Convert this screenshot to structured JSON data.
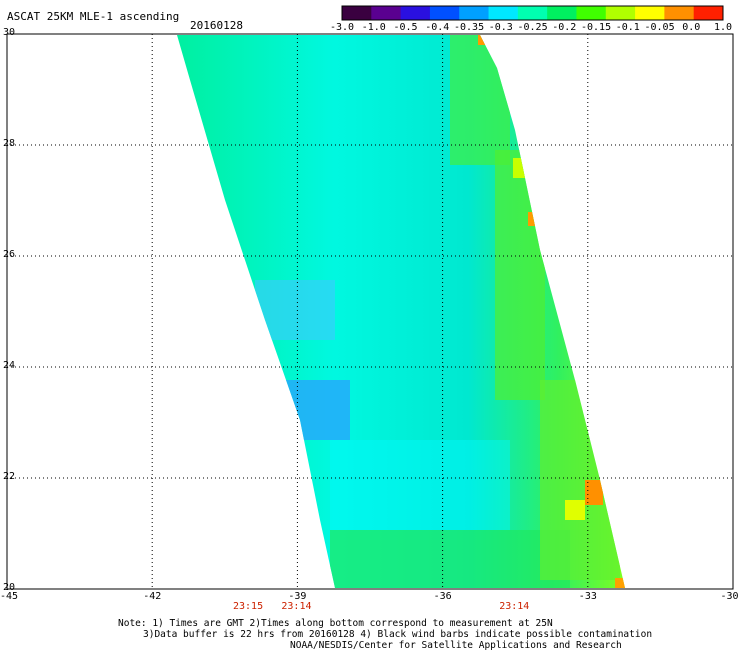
{
  "header": {
    "title": "ASCAT 25KM MLE-1 ascending",
    "date": "20160128"
  },
  "colorbar": {
    "labels": [
      "-3.0",
      "-1.0",
      "-0.5",
      "-0.4",
      "-0.35",
      "-0.3",
      "-0.25",
      "-0.2",
      "-0.15",
      "-0.1",
      "-0.05",
      "0.0",
      "1.0"
    ],
    "colors": [
      "#3a0040",
      "#5a0090",
      "#2a10e0",
      "#0050ff",
      "#00a0ff",
      "#00e8ff",
      "#00ffb0",
      "#00f060",
      "#40ff00",
      "#b0ff00",
      "#ffff00",
      "#ff9000",
      "#ff2000"
    ]
  },
  "map": {
    "lon_ticks": [
      "-45",
      "-42",
      "-39",
      "-36",
      "-33",
      "-30"
    ],
    "lat_ticks": [
      "30",
      "28",
      "26",
      "24",
      "22",
      "20"
    ],
    "lon_range": [
      -45,
      -30
    ],
    "lat_range": [
      20,
      30
    ],
    "grid": true,
    "pass_times": [
      {
        "label": "23:15",
        "lon": -40.0
      },
      {
        "label": "23:14",
        "lon": -39.0
      },
      {
        "label": "23:14",
        "lon": -34.5
      }
    ]
  },
  "notes": {
    "line1": "Note: 1) Times are GMT 2)Times along bottom correspond to measurement at 25N",
    "line2": "3)Data buffer is 22 hrs from 20160128 4) Black wind barbs indicate possible contamination",
    "line3": "NOAA/NESDIS/Center for Satellite Applications and Research"
  }
}
